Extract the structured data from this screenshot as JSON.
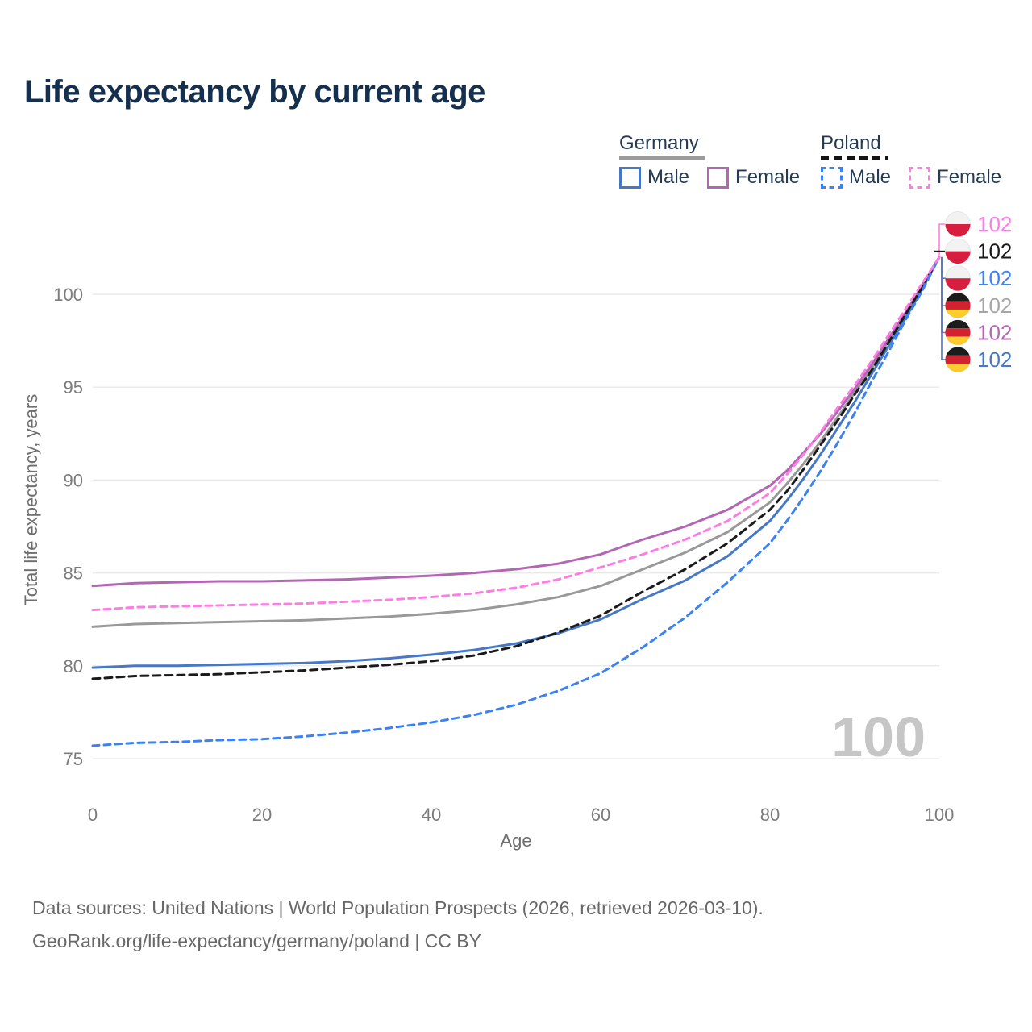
{
  "title": "Life expectancy by current age",
  "watermark": "100",
  "legend": {
    "groups": [
      {
        "label": "Germany",
        "line_style": "solid",
        "underline_color": "#9b9b9b",
        "items": [
          {
            "label": "Male",
            "color": "#4678c8"
          },
          {
            "label": "Female",
            "color": "#b366b3"
          }
        ]
      },
      {
        "label": "Poland",
        "line_style": "dashed",
        "underline_color": "#141414",
        "items": [
          {
            "label": "Male",
            "color": "#3b82f6"
          },
          {
            "label": "Female",
            "color": "#ff7ce5"
          }
        ]
      }
    ]
  },
  "footer": {
    "line1": "Data sources: United Nations | World Population Prospects (2026, retrieved 2026-03-10).",
    "line2": "GeoRank.org/life-expectancy/germany/poland | CC BY"
  },
  "chart_data": {
    "type": "line",
    "title": "Life expectancy by current age",
    "xlabel": "Age",
    "ylabel": "Total life expectancy, years",
    "x_ticks": [
      0,
      20,
      40,
      60,
      80,
      100
    ],
    "y_ticks": [
      75,
      80,
      85,
      90,
      95,
      100
    ],
    "xlim": [
      0,
      100
    ],
    "ylim": [
      74,
      103
    ],
    "grid": "horizontal",
    "legend_position": "top-right",
    "ages": [
      0,
      5,
      10,
      15,
      20,
      25,
      30,
      35,
      40,
      45,
      50,
      55,
      60,
      65,
      70,
      75,
      80,
      82,
      84,
      86,
      88,
      90,
      92,
      94,
      96,
      98,
      100
    ],
    "series": [
      {
        "id": "germany-male",
        "name": "Germany Male",
        "country": "Germany",
        "sex": "Male",
        "color": "#4678c8",
        "dash": null,
        "values": [
          79.9,
          80.0,
          80.0,
          80.05,
          80.1,
          80.15,
          80.25,
          80.4,
          80.6,
          80.85,
          81.2,
          81.75,
          82.5,
          83.6,
          84.6,
          85.9,
          87.8,
          88.9,
          90.1,
          91.4,
          92.8,
          94.2,
          95.7,
          97.2,
          98.7,
          100.3,
          102
        ]
      },
      {
        "id": "germany-female",
        "name": "Germany Female",
        "country": "Germany",
        "sex": "Female",
        "color": "#b366b3",
        "dash": null,
        "values": [
          84.3,
          84.45,
          84.5,
          84.55,
          84.55,
          84.6,
          84.65,
          84.75,
          84.85,
          85.0,
          85.2,
          85.5,
          86.0,
          86.8,
          87.5,
          88.4,
          89.7,
          90.5,
          91.5,
          92.5,
          93.7,
          94.9,
          96.2,
          97.6,
          99.0,
          100.5,
          102
        ]
      },
      {
        "id": "germany-total",
        "name": "Germany",
        "country": "Germany",
        "sex": "Total",
        "color": "#999999",
        "dash": null,
        "values": [
          82.1,
          82.25,
          82.3,
          82.35,
          82.4,
          82.45,
          82.55,
          82.65,
          82.8,
          83.0,
          83.3,
          83.7,
          84.3,
          85.2,
          86.1,
          87.2,
          88.8,
          89.8,
          90.9,
          92.1,
          93.4,
          94.7,
          96.0,
          97.5,
          98.9,
          100.4,
          102
        ]
      },
      {
        "id": "poland-male",
        "name": "Poland Male",
        "country": "Poland",
        "sex": "Male",
        "color": "#3b82f6",
        "dash": "8,6",
        "values": [
          75.7,
          75.85,
          75.9,
          76.0,
          76.05,
          76.2,
          76.4,
          76.65,
          76.95,
          77.35,
          77.9,
          78.65,
          79.6,
          81.0,
          82.6,
          84.5,
          86.6,
          87.8,
          89.1,
          90.5,
          92.0,
          93.6,
          95.3,
          96.9,
          98.6,
          100.2,
          102
        ]
      },
      {
        "id": "poland-female",
        "name": "Poland Female",
        "country": "Poland",
        "sex": "Female",
        "color": "#ff7ce5",
        "dash": "8,6",
        "values": [
          83.0,
          83.15,
          83.2,
          83.25,
          83.3,
          83.35,
          83.45,
          83.55,
          83.7,
          83.9,
          84.2,
          84.65,
          85.3,
          86.0,
          86.8,
          87.8,
          89.3,
          90.3,
          91.4,
          92.6,
          93.9,
          95.1,
          96.4,
          97.8,
          99.2,
          100.6,
          102
        ]
      },
      {
        "id": "poland-total",
        "name": "Poland",
        "country": "Poland",
        "sex": "Total",
        "color": "#1a1a1a",
        "dash": "9,6",
        "values": [
          79.3,
          79.45,
          79.5,
          79.55,
          79.65,
          79.75,
          79.9,
          80.05,
          80.25,
          80.55,
          81.05,
          81.8,
          82.7,
          84.0,
          85.2,
          86.6,
          88.4,
          89.4,
          90.6,
          91.9,
          93.2,
          94.6,
          95.9,
          97.4,
          98.9,
          100.4,
          102
        ]
      }
    ],
    "end_labels": [
      {
        "text": "102",
        "color": "#ff7ce5",
        "flag": "poland",
        "series": "poland-female"
      },
      {
        "text": "102",
        "color": "#1a1a1a",
        "flag": "poland",
        "series": "poland-total"
      },
      {
        "text": "102",
        "color": "#3b82f6",
        "flag": "poland",
        "series": "poland-male"
      },
      {
        "text": "102",
        "color": "#a6a6a6",
        "flag": "germany",
        "series": "germany-total"
      },
      {
        "text": "102",
        "color": "#b366b3",
        "flag": "germany",
        "series": "germany-female"
      },
      {
        "text": "102",
        "color": "#4678c8",
        "flag": "germany",
        "series": "germany-male"
      }
    ]
  }
}
